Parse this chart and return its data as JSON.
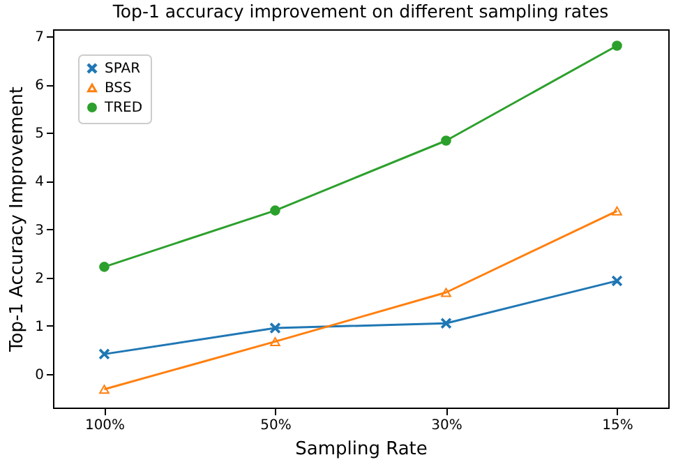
{
  "chart_data": {
    "type": "line",
    "title": "Top-1 accuracy improvement on different sampling rates",
    "xlabel": "Sampling Rate",
    "ylabel": "Top-1 Accuracy Improvement",
    "categories": [
      "100%",
      "50%",
      "30%",
      "15%"
    ],
    "series": [
      {
        "name": "SPAR",
        "color": "#1f77b4",
        "marker": "cross",
        "values": [
          0.41,
          0.95,
          1.05,
          1.93
        ]
      },
      {
        "name": "BSS",
        "color": "#ff7f0e",
        "marker": "triangle",
        "values": [
          -0.32,
          0.67,
          1.69,
          3.38
        ]
      },
      {
        "name": "TRED",
        "color": "#2ca02c",
        "marker": "circle",
        "values": [
          2.22,
          3.39,
          4.84,
          6.81
        ]
      }
    ],
    "ylim": [
      -0.7,
      7.15
    ],
    "yticks": [
      0,
      1,
      2,
      3,
      4,
      5,
      6,
      7
    ],
    "grid": false,
    "legend": "top left"
  }
}
